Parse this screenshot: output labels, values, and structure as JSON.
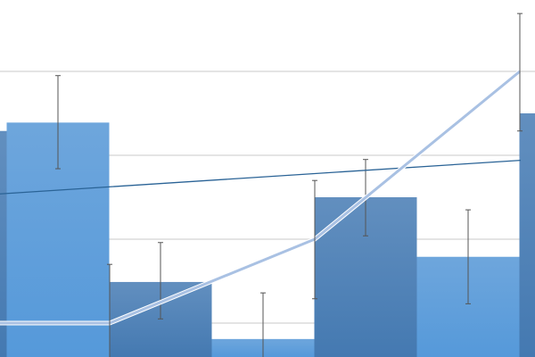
{
  "chart_data": {
    "type": "bar",
    "title": "",
    "xlabel": "",
    "ylabel": "",
    "grid": true,
    "gridlines": [
      1,
      2,
      3,
      4
    ],
    "ylim": [
      0,
      4.85
    ],
    "legend": "none",
    "bars": {
      "values": [
        3.29,
        3.39,
        1.49,
        0.81,
        2.5,
        1.79,
        3.5
      ],
      "error_low": [
        null,
        2.84,
        1.05,
        0.3,
        2.04,
        1.23,
        null
      ],
      "error_high": [
        null,
        3.95,
        1.96,
        1.36,
        2.95,
        2.35,
        null
      ],
      "colors": [
        "#4f86bf",
        "#5d9fdc",
        "#4f86bf",
        "#5d9fdc",
        "#4f86bf",
        "#5d9fdc",
        "#4f86bf"
      ]
    },
    "line": {
      "values": [
        1,
        1,
        2,
        4
      ],
      "error_low": [
        null,
        0.3,
        1.29,
        3.29
      ],
      "error_high": [
        null,
        1.7,
        2.7,
        4.69
      ],
      "color": "#a9c1e3"
    },
    "trendline": {
      "values": [
        2.54,
        2.94
      ],
      "color": "#2a6396"
    }
  }
}
